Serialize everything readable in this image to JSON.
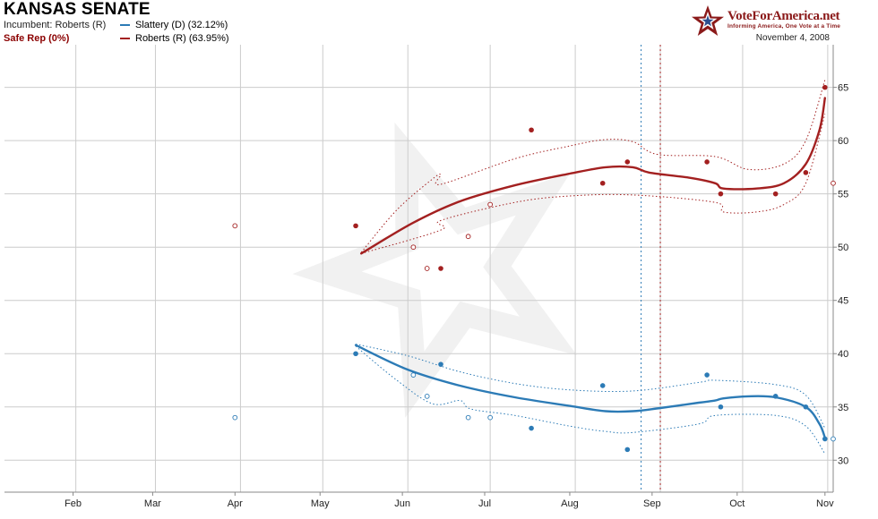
{
  "header": {
    "title": "KANSAS SENATE",
    "incumbent": "Incumbent: Roberts (R)",
    "rating": "Safe Rep (0%)",
    "date": "November 4, 2008",
    "brand": "VoteForAmerica.net",
    "tagline": "Informing America, One Vote at a Time"
  },
  "colors": {
    "dem": "#2c7bb6",
    "rep": "#a32020",
    "rating": "#8b0000",
    "grid": "#cccccc",
    "axis": "#888888"
  },
  "chart_data": {
    "type": "line",
    "x_axis": {
      "ticks": [
        "Feb",
        "Mar",
        "Apr",
        "May",
        "Jun",
        "Jul",
        "Aug",
        "Sep",
        "Oct",
        "Nov"
      ],
      "range": [
        "2008-01-06",
        "2008-11-03"
      ]
    },
    "y_axis": {
      "ticks": [
        "30",
        "35",
        "40",
        "45",
        "50",
        "55",
        "60",
        "65"
      ],
      "range": [
        27,
        69
      ],
      "position": "right"
    },
    "grid": true,
    "legend_position": "top-left",
    "series": [
      {
        "name": "Slattery (D) (32.12%)",
        "color": "#2c7bb6",
        "trend": [
          {
            "x": "2008-05-13",
            "y": 40.8
          },
          {
            "x": "2008-06-01",
            "y": 38.5
          },
          {
            "x": "2008-06-20",
            "y": 37.0
          },
          {
            "x": "2008-07-10",
            "y": 35.9
          },
          {
            "x": "2008-07-30",
            "y": 35.1
          },
          {
            "x": "2008-08-12",
            "y": 34.6
          },
          {
            "x": "2008-08-22",
            "y": 34.6
          },
          {
            "x": "2008-09-01",
            "y": 34.9
          },
          {
            "x": "2008-09-15",
            "y": 35.4
          },
          {
            "x": "2008-09-21",
            "y": 35.6
          },
          {
            "x": "2008-09-24",
            "y": 35.8
          },
          {
            "x": "2008-10-03",
            "y": 36.0
          },
          {
            "x": "2008-10-13",
            "y": 35.9
          },
          {
            "x": "2008-10-24",
            "y": 35.0
          },
          {
            "x": "2008-10-29",
            "y": 33.4
          },
          {
            "x": "2008-10-31",
            "y": 32.1
          }
        ],
        "upper": [
          {
            "x": "2008-05-13",
            "y": 40.9
          },
          {
            "x": "2008-06-01",
            "y": 39.8
          },
          {
            "x": "2008-06-20",
            "y": 38.3
          },
          {
            "x": "2008-07-10",
            "y": 37.2
          },
          {
            "x": "2008-07-30",
            "y": 36.6
          },
          {
            "x": "2008-08-22",
            "y": 36.5
          },
          {
            "x": "2008-09-15",
            "y": 37.3
          },
          {
            "x": "2008-09-21",
            "y": 37.5
          },
          {
            "x": "2008-10-13",
            "y": 37.1
          },
          {
            "x": "2008-10-24",
            "y": 36.1
          },
          {
            "x": "2008-10-31",
            "y": 33.0
          }
        ],
        "lower": [
          {
            "x": "2008-05-13",
            "y": 40.7
          },
          {
            "x": "2008-05-28",
            "y": 37.5
          },
          {
            "x": "2008-06-10",
            "y": 35.3
          },
          {
            "x": "2008-06-20",
            "y": 35.6
          },
          {
            "x": "2008-06-24",
            "y": 34.8
          },
          {
            "x": "2008-07-10",
            "y": 34.2
          },
          {
            "x": "2008-07-30",
            "y": 33.2
          },
          {
            "x": "2008-08-12",
            "y": 32.7
          },
          {
            "x": "2008-08-22",
            "y": 32.6
          },
          {
            "x": "2008-09-15",
            "y": 33.4
          },
          {
            "x": "2008-09-21",
            "y": 34.2
          },
          {
            "x": "2008-10-13",
            "y": 34.2
          },
          {
            "x": "2008-10-24",
            "y": 33.2
          },
          {
            "x": "2008-10-31",
            "y": 30.6
          }
        ],
        "polls_solid": [
          {
            "x": "2008-05-13",
            "y": 40
          },
          {
            "x": "2008-06-13",
            "y": 39
          },
          {
            "x": "2008-07-16",
            "y": 33
          },
          {
            "x": "2008-08-11",
            "y": 37
          },
          {
            "x": "2008-08-20",
            "y": 31
          },
          {
            "x": "2008-09-18",
            "y": 38
          },
          {
            "x": "2008-09-23",
            "y": 35
          },
          {
            "x": "2008-10-13",
            "y": 36
          },
          {
            "x": "2008-10-24",
            "y": 35
          },
          {
            "x": "2008-10-31",
            "y": 32
          }
        ],
        "polls_open": [
          {
            "x": "2008-03-30",
            "y": 34
          },
          {
            "x": "2008-06-03",
            "y": 38
          },
          {
            "x": "2008-06-08",
            "y": 36
          },
          {
            "x": "2008-06-23",
            "y": 34
          },
          {
            "x": "2008-07-01",
            "y": 34
          },
          {
            "x": "2008-11-03",
            "y": 32
          }
        ]
      },
      {
        "name": "Roberts (R) (63.95%)",
        "color": "#a32020",
        "trend": [
          {
            "x": "2008-05-15",
            "y": 49.4
          },
          {
            "x": "2008-06-03",
            "y": 52.3
          },
          {
            "x": "2008-06-20",
            "y": 54.3
          },
          {
            "x": "2008-07-10",
            "y": 55.8
          },
          {
            "x": "2008-07-30",
            "y": 56.9
          },
          {
            "x": "2008-08-12",
            "y": 57.5
          },
          {
            "x": "2008-08-22",
            "y": 57.5
          },
          {
            "x": "2008-08-28",
            "y": 57.0
          },
          {
            "x": "2008-09-12",
            "y": 56.5
          },
          {
            "x": "2008-09-21",
            "y": 56.0
          },
          {
            "x": "2008-09-24",
            "y": 55.5
          },
          {
            "x": "2008-10-06",
            "y": 55.5
          },
          {
            "x": "2008-10-16",
            "y": 56.0
          },
          {
            "x": "2008-10-24",
            "y": 57.8
          },
          {
            "x": "2008-10-29",
            "y": 61.0
          },
          {
            "x": "2008-10-31",
            "y": 64.0
          }
        ],
        "upper": [
          {
            "x": "2008-05-15",
            "y": 49.5
          },
          {
            "x": "2008-05-28",
            "y": 53.5
          },
          {
            "x": "2008-06-10",
            "y": 56.4
          },
          {
            "x": "2008-06-13",
            "y": 56.8
          },
          {
            "x": "2008-06-13",
            "y": 55.9
          },
          {
            "x": "2008-07-10",
            "y": 58.3
          },
          {
            "x": "2008-07-30",
            "y": 59.5
          },
          {
            "x": "2008-08-12",
            "y": 60.1
          },
          {
            "x": "2008-08-22",
            "y": 59.9
          },
          {
            "x": "2008-08-31",
            "y": 58.7
          },
          {
            "x": "2008-09-21",
            "y": 58.5
          },
          {
            "x": "2008-10-03",
            "y": 57.3
          },
          {
            "x": "2008-10-16",
            "y": 57.8
          },
          {
            "x": "2008-10-24",
            "y": 60.0
          },
          {
            "x": "2008-10-31",
            "y": 65.7
          }
        ],
        "lower": [
          {
            "x": "2008-05-15",
            "y": 49.4
          },
          {
            "x": "2008-06-13",
            "y": 51.6
          },
          {
            "x": "2008-06-13",
            "y": 52.5
          },
          {
            "x": "2008-07-10",
            "y": 54.2
          },
          {
            "x": "2008-07-30",
            "y": 54.8
          },
          {
            "x": "2008-08-22",
            "y": 54.9
          },
          {
            "x": "2008-09-21",
            "y": 54.2
          },
          {
            "x": "2008-09-24",
            "y": 53.3
          },
          {
            "x": "2008-10-06",
            "y": 53.3
          },
          {
            "x": "2008-10-16",
            "y": 54.0
          },
          {
            "x": "2008-10-24",
            "y": 56.0
          },
          {
            "x": "2008-10-31",
            "y": 62.5
          }
        ],
        "polls_solid": [
          {
            "x": "2008-05-13",
            "y": 52
          },
          {
            "x": "2008-06-13",
            "y": 48
          },
          {
            "x": "2008-07-16",
            "y": 61
          },
          {
            "x": "2008-08-11",
            "y": 56
          },
          {
            "x": "2008-08-20",
            "y": 58
          },
          {
            "x": "2008-09-18",
            "y": 58
          },
          {
            "x": "2008-09-23",
            "y": 55
          },
          {
            "x": "2008-10-13",
            "y": 55
          },
          {
            "x": "2008-10-24",
            "y": 57
          },
          {
            "x": "2008-10-31",
            "y": 65
          }
        ],
        "polls_open": [
          {
            "x": "2008-03-30",
            "y": 52
          },
          {
            "x": "2008-06-03",
            "y": 50
          },
          {
            "x": "2008-06-08",
            "y": 48
          },
          {
            "x": "2008-06-23",
            "y": 51
          },
          {
            "x": "2008-07-01",
            "y": 54
          },
          {
            "x": "2008-11-03",
            "y": 56
          }
        ]
      }
    ],
    "markers": [
      {
        "x": "2008-08-25",
        "color": "#2c7bb6"
      },
      {
        "x": "2008-09-01",
        "color": "#a32020"
      }
    ]
  }
}
